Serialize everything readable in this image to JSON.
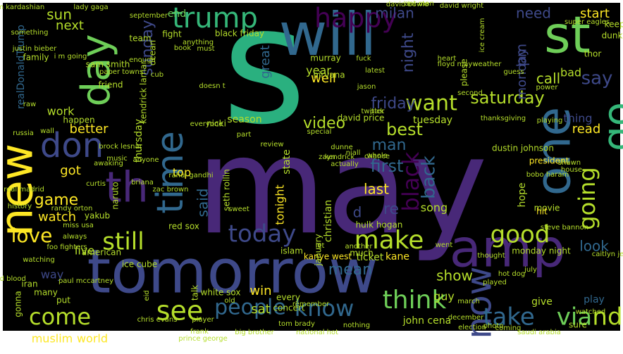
{
  "cloud": {
    "background": "#000000",
    "frame_color": "#ffffff",
    "palette": [
      "#440154",
      "#482878",
      "#3e4989",
      "#31688e",
      "#26828e",
      "#1f9e89",
      "#35b779",
      "#6ece58",
      "#b5de2b",
      "#fde725"
    ],
    "words": [
      {
        "text": "may",
        "color": "#482878"
      },
      {
        "text": "s",
        "color": "#2ab07f"
      },
      {
        "text": "tomorrow",
        "color": "#3e4989"
      },
      {
        "text": "will",
        "color": "#31688e"
      },
      {
        "text": "new",
        "color": "#fde725"
      },
      {
        "text": "amp",
        "color": "#482878"
      },
      {
        "text": "one",
        "color": "#31688e"
      },
      {
        "text": "st",
        "color": "#6ece58"
      },
      {
        "text": "time",
        "color": "#31688e"
      },
      {
        "text": "day",
        "color": "#6ece58"
      },
      {
        "text": "th",
        "color": "#482878"
      },
      {
        "text": "now",
        "color": "#3e4989"
      },
      {
        "text": "don",
        "color": "#3e4989"
      },
      {
        "text": "go",
        "color": "#35b779"
      },
      {
        "text": "trump",
        "color": "#35b779"
      },
      {
        "text": "happy",
        "color": "#440154"
      },
      {
        "text": "see",
        "color": "#b5de2b"
      },
      {
        "text": "people",
        "color": "#31688e"
      },
      {
        "text": "know",
        "color": "#31688e"
      },
      {
        "text": "think",
        "color": "#6ece58"
      },
      {
        "text": "make",
        "color": "#b5de2b"
      },
      {
        "text": "still",
        "color": "#b5de2b"
      },
      {
        "text": "today",
        "color": "#3e4989"
      },
      {
        "text": "come",
        "color": "#b5de2b"
      },
      {
        "text": "love",
        "color": "#fde725"
      },
      {
        "text": "going",
        "color": "#b5de2b"
      },
      {
        "text": "good",
        "color": "#b5de2b"
      },
      {
        "text": "want",
        "color": "#b5de2b"
      },
      {
        "text": "friday",
        "color": "#3e4989"
      },
      {
        "text": "saturday",
        "color": "#b5de2b"
      },
      {
        "text": "sunday",
        "color": "#3e4989"
      },
      {
        "text": "video",
        "color": "#b5de2b"
      },
      {
        "text": "night",
        "color": "#3e4989"
      },
      {
        "text": "take",
        "color": "#31688e"
      },
      {
        "text": "via",
        "color": "#6ece58"
      },
      {
        "text": "nd",
        "color": "#b5de2b"
      },
      {
        "text": "need",
        "color": "#3e4989"
      },
      {
        "text": "milan",
        "color": "#3e4989"
      },
      {
        "text": "start",
        "color": "#fde725"
      },
      {
        "text": "say",
        "color": "#3e4989"
      },
      {
        "text": "sun",
        "color": "#b5de2b"
      },
      {
        "text": "end",
        "color": "#6ece58"
      },
      {
        "text": "next",
        "color": "#b5de2b"
      },
      {
        "text": "great",
        "color": "#31688e"
      },
      {
        "text": "black",
        "color": "#440154"
      },
      {
        "text": "world",
        "color": "#fde725"
      },
      {
        "text": "muslim",
        "color": "#fde725"
      },
      {
        "text": "watch",
        "color": "#fde725"
      },
      {
        "text": "game",
        "color": "#fde725"
      },
      {
        "text": "got",
        "color": "#fde725"
      },
      {
        "text": "better",
        "color": "#fde725"
      },
      {
        "text": "work",
        "color": "#b5de2b"
      },
      {
        "text": "last",
        "color": "#fde725"
      },
      {
        "text": "tonight",
        "color": "#fde725"
      },
      {
        "text": "christian",
        "color": "#b5de2b"
      },
      {
        "text": "show",
        "color": "#b5de2b"
      },
      {
        "text": "guy",
        "color": "#b5de2b"
      },
      {
        "text": "win",
        "color": "#fde725"
      },
      {
        "text": "sat",
        "color": "#b5de2b"
      },
      {
        "text": "look",
        "color": "#31688e"
      },
      {
        "text": "best",
        "color": "#b5de2b"
      },
      {
        "text": "thursday",
        "color": "#b5de2b"
      },
      {
        "text": "monday",
        "color": "#3e4989"
      },
      {
        "text": "tuesday",
        "color": "#b5de2b"
      },
      {
        "text": "year",
        "color": "#b5de2b"
      },
      {
        "text": "well",
        "color": "#fde725"
      },
      {
        "text": "thing",
        "color": "#3e4989"
      },
      {
        "text": "read",
        "color": "#fde725"
      },
      {
        "text": "movie",
        "color": "#b5de2b"
      },
      {
        "text": "hope",
        "color": "#b5de2b"
      },
      {
        "text": "song",
        "color": "#b5de2b"
      },
      {
        "text": "top",
        "color": "#fde725"
      },
      {
        "text": "live",
        "color": "#b5de2b"
      },
      {
        "text": "way",
        "color": "#3e4989"
      },
      {
        "text": "kane",
        "color": "#fde725"
      },
      {
        "text": "ticket",
        "color": "#b5de2b"
      },
      {
        "text": "kanye west",
        "color": "#fde725"
      },
      {
        "text": "john cena",
        "color": "#b5de2b"
      },
      {
        "text": "much",
        "color": "#b5de2b"
      },
      {
        "text": "play",
        "color": "#31688e"
      },
      {
        "text": "give",
        "color": "#b5de2b"
      },
      {
        "text": "hit",
        "color": "#fde725"
      },
      {
        "text": "ice cube",
        "color": "#b5de2b"
      },
      {
        "text": "murray",
        "color": "#b5de2b"
      },
      {
        "text": "nirvana",
        "color": "#b5de2b"
      },
      {
        "text": "seth rollin",
        "color": "#b5de2b"
      },
      {
        "text": "realDonaldTrump",
        "color": "#31688e"
      },
      {
        "text": "sam smith",
        "color": "#b5de2b"
      },
      {
        "text": "david price",
        "color": "#b5de2b"
      },
      {
        "text": "dustin johnson",
        "color": "#b5de2b"
      },
      {
        "text": "monday night",
        "color": "#b5de2b"
      },
      {
        "text": "black friday",
        "color": "#b5de2b"
      },
      {
        "text": "white sox",
        "color": "#b5de2b"
      },
      {
        "text": "red sox",
        "color": "#b5de2b"
      },
      {
        "text": "hulk hogan",
        "color": "#b5de2b"
      },
      {
        "text": "president",
        "color": "#fde725"
      },
      {
        "text": "season",
        "color": "#b5de2b"
      },
      {
        "text": "islam",
        "color": "#b5de2b"
      },
      {
        "text": "real madrid",
        "color": "#b5de2b"
      },
      {
        "text": "big brother",
        "color": "#b5de2b"
      },
      {
        "text": "national hot",
        "color": "#b5de2b"
      },
      {
        "text": "saudi arabia",
        "color": "#b5de2b"
      },
      {
        "text": "chris evans",
        "color": "#b5de2b"
      },
      {
        "text": "david bowie",
        "color": "#b5de2b"
      },
      {
        "text": "floyd mayweather",
        "color": "#b5de2b"
      },
      {
        "text": "justin bieber",
        "color": "#b5de2b"
      },
      {
        "text": "kim kardashian",
        "color": "#b5de2b"
      },
      {
        "text": "lady gaga",
        "color": "#b5de2b"
      },
      {
        "text": "super eagles",
        "color": "#b5de2b"
      },
      {
        "text": "september",
        "color": "#b5de2b"
      },
      {
        "text": "thanksgiving",
        "color": "#b5de2b"
      },
      {
        "text": "mean",
        "color": "#31688e"
      },
      {
        "text": "said",
        "color": "#31688e"
      },
      {
        "text": "man",
        "color": "#31688e"
      },
      {
        "text": "first",
        "color": "#31688e"
      },
      {
        "text": "back",
        "color": "#31688e"
      },
      {
        "text": "re",
        "color": "#3e4989"
      },
      {
        "text": "d",
        "color": "#3e4989"
      },
      {
        "text": "pm",
        "color": "#3e4989"
      },
      {
        "text": "call",
        "color": "#b5de2b"
      },
      {
        "text": "bad",
        "color": "#b5de2b"
      },
      {
        "text": "thor",
        "color": "#b5de2b"
      },
      {
        "text": "keep",
        "color": "#b5de2b"
      },
      {
        "text": "dunkin",
        "color": "#b5de2b"
      },
      {
        "text": "happen",
        "color": "#b5de2b"
      },
      {
        "text": "friend",
        "color": "#b5de2b"
      },
      {
        "text": "ocean",
        "color": "#b5de2b"
      },
      {
        "text": "team",
        "color": "#b5de2b"
      },
      {
        "text": "fight",
        "color": "#b5de2b"
      },
      {
        "text": "family",
        "color": "#b5de2b"
      },
      {
        "text": "something",
        "color": "#b5de2b"
      },
      {
        "text": "russia",
        "color": "#b5de2b"
      },
      {
        "text": "wall",
        "color": "#b5de2b"
      },
      {
        "text": "raw",
        "color": "#b5de2b"
      },
      {
        "text": "history",
        "color": "#b5de2b"
      },
      {
        "text": "randy orton",
        "color": "#b5de2b"
      },
      {
        "text": "naruto",
        "color": "#b5de2b"
      },
      {
        "text": "yakub",
        "color": "#b5de2b"
      },
      {
        "text": "zac brown",
        "color": "#b5de2b"
      },
      {
        "text": "briana",
        "color": "#b5de2b"
      },
      {
        "text": "curtis",
        "color": "#b5de2b"
      },
      {
        "text": "anyone",
        "color": "#b5de2b"
      },
      {
        "text": "nicki",
        "color": "#b5de2b"
      },
      {
        "text": "rahul gandhi",
        "color": "#b5de2b"
      },
      {
        "text": "brock lesnar",
        "color": "#b5de2b"
      },
      {
        "text": "music",
        "color": "#b5de2b"
      },
      {
        "text": "awaking",
        "color": "#b5de2b"
      },
      {
        "text": "bad blood",
        "color": "#b5de2b"
      },
      {
        "text": "iran",
        "color": "#b5de2b"
      },
      {
        "text": "many",
        "color": "#b5de2b"
      },
      {
        "text": "gonna",
        "color": "#b5de2b"
      },
      {
        "text": "watching",
        "color": "#b5de2b"
      },
      {
        "text": "put",
        "color": "#b5de2b"
      },
      {
        "text": "talk",
        "color": "#b5de2b"
      },
      {
        "text": "eid",
        "color": "#b5de2b"
      },
      {
        "text": "paul mccartney",
        "color": "#b5de2b"
      },
      {
        "text": "american",
        "color": "#b5de2b"
      },
      {
        "text": "foo fighters",
        "color": "#b5de2b"
      },
      {
        "text": "miss usa",
        "color": "#b5de2b"
      },
      {
        "text": "always",
        "color": "#b5de2b"
      },
      {
        "text": "old",
        "color": "#b5de2b"
      },
      {
        "text": "player",
        "color": "#b5de2b"
      },
      {
        "text": "concert",
        "color": "#b5de2b"
      },
      {
        "text": "every",
        "color": "#b5de2b"
      },
      {
        "text": "remember",
        "color": "#b5de2b"
      },
      {
        "text": "tom brady",
        "color": "#b5de2b"
      },
      {
        "text": "nothing",
        "color": "#b5de2b"
      },
      {
        "text": "january",
        "color": "#b5de2b"
      },
      {
        "text": "let",
        "color": "#b5de2b"
      },
      {
        "text": "another",
        "color": "#b5de2b"
      },
      {
        "text": "zayn",
        "color": "#b5de2b"
      },
      {
        "text": "special",
        "color": "#b5de2b"
      },
      {
        "text": "part",
        "color": "#b5de2b"
      },
      {
        "text": "review",
        "color": "#b5de2b"
      },
      {
        "text": "everyone",
        "color": "#b5de2b"
      },
      {
        "text": "sweet",
        "color": "#b5de2b"
      },
      {
        "text": "went",
        "color": "#b5de2b"
      },
      {
        "text": "thought",
        "color": "#b5de2b"
      },
      {
        "text": "hot dog",
        "color": "#b5de2b"
      },
      {
        "text": "july",
        "color": "#b5de2b"
      },
      {
        "text": "played",
        "color": "#b5de2b"
      },
      {
        "text": "march",
        "color": "#b5de2b"
      },
      {
        "text": "december",
        "color": "#b5de2b"
      },
      {
        "text": "election",
        "color": "#b5de2b"
      },
      {
        "text": "coming",
        "color": "#b5de2b"
      },
      {
        "text": "photo",
        "color": "#b5de2b"
      },
      {
        "text": "sure",
        "color": "#b5de2b"
      },
      {
        "text": "watched",
        "color": "#b5de2b"
      },
      {
        "text": "steve bannon",
        "color": "#b5de2b"
      },
      {
        "text": "shawn",
        "color": "#b5de2b"
      },
      {
        "text": "house",
        "color": "#b5de2b"
      },
      {
        "text": "bobo haram",
        "color": "#b5de2b"
      },
      {
        "text": "power",
        "color": "#b5de2b"
      },
      {
        "text": "playing",
        "color": "#b5de2b"
      },
      {
        "text": "pick",
        "color": "#b5de2b"
      },
      {
        "text": "actually",
        "color": "#b5de2b"
      },
      {
        "text": "kendrick",
        "color": "#b5de2b"
      },
      {
        "text": "niall",
        "color": "#b5de2b"
      },
      {
        "text": "dunne",
        "color": "#b5de2b"
      },
      {
        "text": "guess",
        "color": "#b5de2b"
      },
      {
        "text": "second",
        "color": "#b5de2b"
      },
      {
        "text": "please",
        "color": "#b5de2b"
      },
      {
        "text": "heart",
        "color": "#b5de2b"
      },
      {
        "text": "ice cream",
        "color": "#b5de2b"
      },
      {
        "text": "ant man",
        "color": "#b5de2b"
      },
      {
        "text": "david wright",
        "color": "#b5de2b"
      },
      {
        "text": "latest",
        "color": "#b5de2b"
      },
      {
        "text": "twitter",
        "color": "#b5de2b"
      },
      {
        "text": "book",
        "color": "#b5de2b"
      },
      {
        "text": "doesn t",
        "color": "#b5de2b"
      },
      {
        "text": "fuck",
        "color": "#b5de2b"
      },
      {
        "text": "i m going",
        "color": "#b5de2b"
      },
      {
        "text": "anything",
        "color": "#b5de2b"
      },
      {
        "text": "enough",
        "color": "#b5de2b"
      },
      {
        "text": "cub",
        "color": "#b5de2b"
      },
      {
        "text": "must",
        "color": "#b5de2b"
      },
      {
        "text": "state",
        "color": "#b5de2b"
      },
      {
        "text": "whole",
        "color": "#b5de2b"
      },
      {
        "text": "chance",
        "color": "#b5de2b"
      },
      {
        "text": "prince george",
        "color": "#b5de2b"
      },
      {
        "text": "frank",
        "color": "#b5de2b"
      },
      {
        "text": "jason",
        "color": "#b5de2b"
      },
      {
        "text": "caitlyn jenner",
        "color": "#b5de2b"
      },
      {
        "text": "paper towns",
        "color": "#b5de2b"
      },
      {
        "text": "kendrick lamar",
        "color": "#b5de2b"
      },
      {
        "text": "oh",
        "color": "#b5de2b"
      },
      {
        "text": "yet",
        "color": "#b5de2b"
      },
      {
        "text": "even",
        "color": "#b5de2b"
      }
    ]
  }
}
